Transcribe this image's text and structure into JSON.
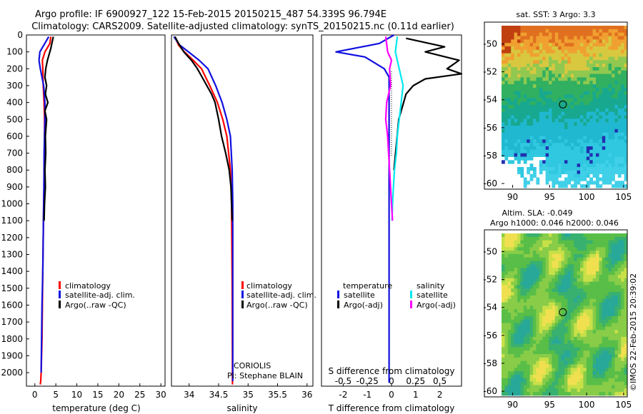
{
  "header": {
    "title_line1": "Argo profile: IF 6900927_122 15-Feb-2015 20150215_487 54.339S 96.794E",
    "title_line2": "Climatology: CARS2009. Satellite-adjusted climatology: synTS_20150215.nc (0.11d earlier)"
  },
  "side_stamp": "©IMOS 22-Feb-2015 20:39:02",
  "colors": {
    "climatology": "#ff0000",
    "satellite": "#1010e0",
    "argo": "#000000",
    "sat_salinity": "#00e8f0",
    "argo_salinity_adj": "#ff00ff"
  },
  "chart_data": [
    {
      "type": "line",
      "id": "temperature",
      "xlabel": "temperature (deg C)",
      "ylabel": "",
      "xlim": [
        -2,
        31
      ],
      "ylim": [
        2080,
        0
      ],
      "xticks": [
        "0",
        "5",
        "10",
        "15",
        "20",
        "25",
        "30"
      ],
      "yticks": [
        "0",
        "100",
        "200",
        "300",
        "400",
        "500",
        "600",
        "700",
        "800",
        "900",
        "1000",
        "1100",
        "1200",
        "1300",
        "1400",
        "1500",
        "1600",
        "1700",
        "1800",
        "1900",
        "2000"
      ],
      "legend": [
        "climatology",
        "satellite-adj. clim.",
        "Argo(..raw -QC)"
      ],
      "series": [
        {
          "name": "climatology",
          "color": "#ff0000",
          "x": [
            3.8,
            3.6,
            2.4,
            1.8,
            1.9,
            2.0,
            2.2,
            2.3,
            2.3,
            2.3,
            2.2,
            2.2,
            2.1,
            2.0,
            1.9,
            1.8,
            1.7,
            1.6,
            1.5,
            1.4,
            1.3
          ],
          "y": [
            10,
            50,
            100,
            150,
            200,
            300,
            400,
            500,
            600,
            700,
            800,
            900,
            1000,
            1200,
            1400,
            1600,
            1800,
            1900,
            2000,
            2050,
            2070
          ]
        },
        {
          "name": "satellite-adj. clim.",
          "color": "#1010e0",
          "x": [
            3.3,
            1.2,
            1.0,
            1.3,
            1.7,
            2.1,
            2.4,
            2.4,
            2.3,
            2.2,
            2.2,
            2.1,
            2.0,
            1.9,
            1.7,
            1.6,
            1.5
          ],
          "y": [
            10,
            100,
            150,
            200,
            250,
            300,
            400,
            500,
            600,
            700,
            800,
            1000,
            1200,
            1400,
            1600,
            1800,
            2000
          ]
        },
        {
          "name": "Argo(..raw -QC)",
          "color": "#000000",
          "x": [
            4.4,
            3.8,
            3.0,
            2.6,
            2.4,
            2.8,
            2.5,
            3.1,
            2.4,
            2.8,
            2.5,
            2.6,
            2.4,
            2.5,
            2.3,
            2.2
          ],
          "y": [
            10,
            80,
            150,
            200,
            250,
            300,
            350,
            400,
            450,
            500,
            600,
            700,
            800,
            900,
            1000,
            1100
          ]
        }
      ]
    },
    {
      "type": "line",
      "id": "salinity",
      "xlabel": "salinity",
      "ylabel": "",
      "xlim": [
        33.7,
        36.1
      ],
      "ylim": [
        2080,
        0
      ],
      "xticks": [
        "34",
        "34.5",
        "35",
        "35.5",
        "36"
      ],
      "legend": [
        "climatology",
        "satellite-adj. clim.",
        "Argo(..raw -QC)"
      ],
      "annotation": [
        "CORIOLIS",
        "PI: Stephane BLAIN"
      ],
      "series": [
        {
          "name": "climatology",
          "color": "#ff0000",
          "x": [
            33.76,
            33.82,
            33.92,
            34.07,
            34.21,
            34.35,
            34.48,
            34.57,
            34.64,
            34.7,
            34.72,
            34.73,
            34.735
          ],
          "y": [
            10,
            60,
            100,
            150,
            200,
            300,
            400,
            500,
            600,
            800,
            1000,
            1500,
            2070
          ]
        },
        {
          "name": "satellite-adj. clim.",
          "color": "#1010e0",
          "x": [
            33.74,
            33.84,
            33.99,
            34.17,
            34.32,
            34.45,
            34.56,
            34.64,
            34.7,
            34.73,
            34.74,
            34.74
          ],
          "y": [
            10,
            60,
            100,
            150,
            200,
            300,
            400,
            500,
            600,
            800,
            1000,
            2050
          ]
        },
        {
          "name": "Argo(..raw -QC)",
          "color": "#000000",
          "x": [
            33.76,
            33.82,
            33.91,
            34.04,
            34.14,
            34.22,
            34.3,
            34.38,
            34.44,
            34.5,
            34.55,
            34.62,
            34.68,
            34.71,
            34.73
          ],
          "y": [
            10,
            50,
            100,
            150,
            200,
            250,
            300,
            350,
            400,
            500,
            600,
            700,
            800,
            900,
            1100
          ]
        }
      ]
    },
    {
      "type": "line",
      "id": "difference",
      "xlabel": "T difference from climatology",
      "xlabel_top": "S difference from climatology",
      "xlim": [
        -2.9,
        2.9
      ],
      "ylim": [
        2080,
        0
      ],
      "xticks": [
        "-2",
        "-1",
        "0",
        "1",
        "2"
      ],
      "xticks_top": [
        "-0.5",
        "-0.25",
        "0",
        "0.25",
        "0.5"
      ],
      "legend_groups": [
        {
          "title": "temperature",
          "items": [
            "satellite",
            "Argo(-adj)"
          ]
        },
        {
          "title": "salinity",
          "items": [
            "satellite",
            "Argo(-adj)"
          ]
        }
      ],
      "series": [
        {
          "name": "temperature satellite",
          "color": "#1010e0",
          "unit": "T",
          "x": [
            0.1,
            -0.5,
            -2.3,
            -1.1,
            -0.3,
            -0.1,
            -0.1,
            -0.1,
            -0.1,
            -0.1,
            -0.1,
            -0.1,
            -0.1,
            -0.1,
            -0.1
          ],
          "y": [
            0,
            50,
            100,
            130,
            200,
            250,
            400,
            700,
            1000,
            1200,
            1400,
            1600,
            1800,
            2000,
            2060
          ]
        },
        {
          "name": "temperature Argo(-adj)",
          "color": "#000000",
          "unit": "T",
          "x": [
            0.6,
            2.2,
            1.4,
            2.8,
            2.3,
            2.9,
            1.4,
            0.9,
            0.6,
            0.3,
            0.1
          ],
          "y": [
            20,
            70,
            100,
            150,
            200,
            230,
            260,
            300,
            350,
            500,
            800
          ]
        },
        {
          "name": "salinity satellite",
          "color": "#00e8f0",
          "unit": "S",
          "x": [
            0.06,
            0.04,
            0.08,
            0.12,
            0.1,
            0.08,
            0.06,
            0.05,
            0.03,
            0.02,
            0.01,
            0.005
          ],
          "y": [
            10,
            100,
            200,
            300,
            400,
            500,
            600,
            700,
            800,
            900,
            1000,
            1100
          ]
        },
        {
          "name": "salinity Argo(-adj)",
          "color": "#ff00ff",
          "unit": "S",
          "x": [
            -0.06,
            -0.04,
            0.0,
            -0.02,
            -0.01,
            -0.05,
            -0.06,
            -0.04,
            -0.03,
            -0.02,
            0.0,
            0.01
          ],
          "y": [
            10,
            100,
            150,
            200,
            300,
            400,
            500,
            600,
            700,
            800,
            1000,
            1100
          ]
        }
      ]
    },
    {
      "type": "heatmap",
      "id": "sst_map",
      "title": "sat. SST: 3 Argo: 3.3",
      "xlim": [
        88.5,
        105.5
      ],
      "ylim": [
        -60.3,
        -48.7
      ],
      "xticks": [
        "90",
        "95",
        "100",
        "105"
      ],
      "yticks": [
        "-50",
        "-52",
        "-54",
        "-56",
        "-58",
        "-60"
      ],
      "marker": {
        "lon": 96.794,
        "lat": -54.339
      }
    },
    {
      "type": "heatmap",
      "id": "sla_map",
      "title_line1": "Altim. SLA: -0.049",
      "title_line2": "Argo h1000: 0.046 h2000: 0.046",
      "xlim": [
        88.5,
        105.5
      ],
      "ylim": [
        -60.3,
        -48.7
      ],
      "xticks": [
        "90",
        "95",
        "100",
        "105"
      ],
      "yticks": [
        "-50",
        "-52",
        "-54",
        "-56",
        "-58",
        "-60"
      ],
      "marker": {
        "lon": 96.794,
        "lat": -54.339
      }
    }
  ]
}
